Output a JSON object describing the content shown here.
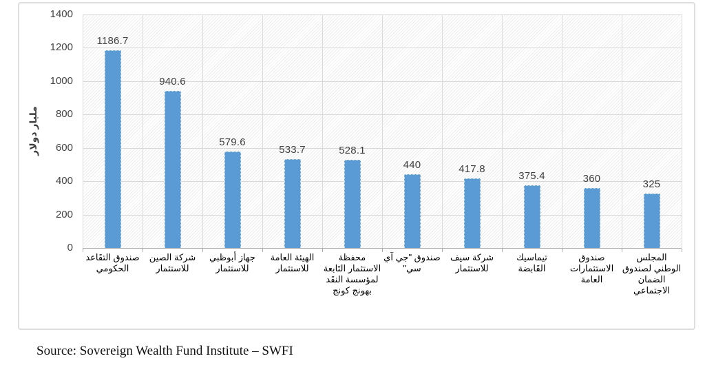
{
  "figure": {
    "frame_border_color": "#dedede",
    "background_color": "#ffffff"
  },
  "source": {
    "text": "Source: Sovereign Wealth Fund Institute – SWFI"
  },
  "chart_data": {
    "type": "bar",
    "title": "",
    "xlabel": "",
    "ylabel": "مليار دولار",
    "ylim": [
      0,
      1400
    ],
    "yticks": [
      0,
      200,
      400,
      600,
      800,
      1000,
      1200,
      1400
    ],
    "grid": "horizontal and vertical major gridlines, light gray, hatched plot background",
    "legend": "none",
    "bar_color": "#5B9BD5",
    "gridline_color": "#d9d9d9",
    "categories": [
      "صندوق التقَاعد الحكومي",
      "شركة الصين للاستثمار",
      "جهاز أبوظبي للاستثمار",
      "الهيئة العامة للاستثمار",
      "محفظة الاستثمار التَابعة لمؤسسة النقَد بهونج كونج",
      "صندوق \"جي آي سي\"",
      "شركة سيف للاستثمار",
      "تيماسيك القَابضة",
      "صندوق الاستثمارات العامة",
      "المجلس الوطني لصندوق الضمان الاجتماعي"
    ],
    "values": [
      1186.7,
      940.6,
      579.6,
      533.7,
      528.1,
      440,
      417.8,
      375.4,
      360,
      325
    ],
    "value_labels": [
      "1186.7",
      "940.6",
      "579.6",
      "533.7",
      "528.1",
      "440",
      "417.8",
      "375.4",
      "360",
      "325"
    ]
  }
}
